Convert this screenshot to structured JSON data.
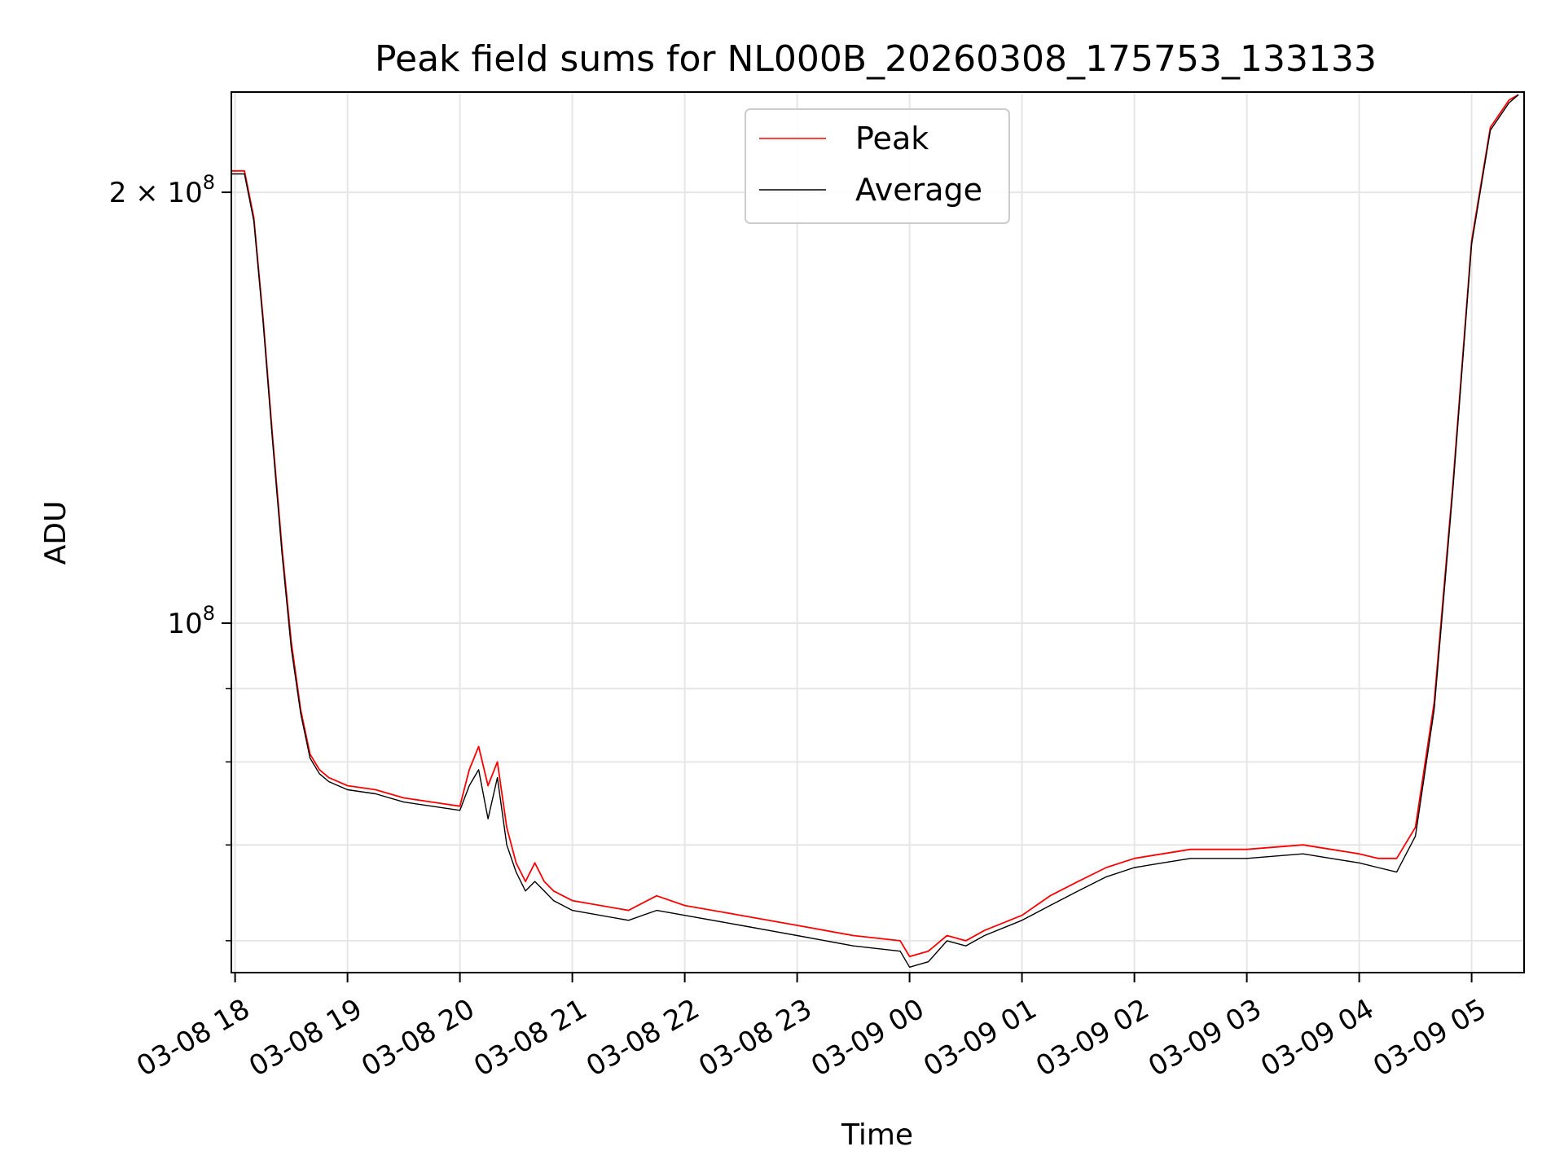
{
  "chart_data": {
    "type": "line",
    "title": "Peak field sums for NL000B_20260308_175753_133133",
    "xlabel": "Time",
    "ylabel": "ADU",
    "y_scale": "log",
    "ylim": [
      57000000,
      235000000
    ],
    "xlim": [
      "2026-03-08 17:58",
      "2026-03-09 05:28"
    ],
    "grid": true,
    "legend_position": "top-center",
    "x_ticks": [
      "03-08 18",
      "03-08 19",
      "03-08 20",
      "03-08 21",
      "03-08 22",
      "03-08 23",
      "03-09 00",
      "03-09 01",
      "03-09 02",
      "03-09 03",
      "03-09 04",
      "03-09 05"
    ],
    "y_major_ticks": [
      {
        "value": 200000000,
        "label": "2 × 10^8"
      },
      {
        "value": 100000000,
        "label": "10^8"
      }
    ],
    "y_minor_ticks": [
      60000000,
      70000000,
      80000000,
      90000000
    ],
    "x": [
      "2026-03-08 17:58",
      "2026-03-08 18:05",
      "2026-03-08 18:10",
      "2026-03-08 18:15",
      "2026-03-08 18:20",
      "2026-03-08 18:25",
      "2026-03-08 18:30",
      "2026-03-08 18:35",
      "2026-03-08 18:40",
      "2026-03-08 18:45",
      "2026-03-08 18:50",
      "2026-03-08 19:00",
      "2026-03-08 19:15",
      "2026-03-08 19:30",
      "2026-03-08 19:45",
      "2026-03-08 20:00",
      "2026-03-08 20:05",
      "2026-03-08 20:10",
      "2026-03-08 20:15",
      "2026-03-08 20:20",
      "2026-03-08 20:25",
      "2026-03-08 20:30",
      "2026-03-08 20:35",
      "2026-03-08 20:40",
      "2026-03-08 20:45",
      "2026-03-08 20:50",
      "2026-03-08 20:55",
      "2026-03-08 21:00",
      "2026-03-08 21:30",
      "2026-03-08 21:45",
      "2026-03-08 22:00",
      "2026-03-08 22:30",
      "2026-03-08 23:00",
      "2026-03-08 23:30",
      "2026-03-08 23:55",
      "2026-03-09 00:00",
      "2026-03-09 00:10",
      "2026-03-09 00:20",
      "2026-03-09 00:30",
      "2026-03-09 00:40",
      "2026-03-09 01:00",
      "2026-03-09 01:15",
      "2026-03-09 01:30",
      "2026-03-09 01:45",
      "2026-03-09 02:00",
      "2026-03-09 02:15",
      "2026-03-09 02:30",
      "2026-03-09 03:00",
      "2026-03-09 03:30",
      "2026-03-09 03:45",
      "2026-03-09 04:00",
      "2026-03-09 04:10",
      "2026-03-09 04:20",
      "2026-03-09 04:30",
      "2026-03-09 04:40",
      "2026-03-09 04:50",
      "2026-03-09 05:00",
      "2026-03-09 05:10",
      "2026-03-09 05:20",
      "2026-03-09 05:25"
    ],
    "series": [
      {
        "name": "Peak",
        "color": "#ff0000",
        "values": [
          207000000,
          207000000,
          192000000,
          163000000,
          135000000,
          113000000,
          97000000,
          87000000,
          81000000,
          79000000,
          78000000,
          77000000,
          76500000,
          75500000,
          75000000,
          74500000,
          79000000,
          82000000,
          77000000,
          80000000,
          72000000,
          68000000,
          66000000,
          68000000,
          66000000,
          65000000,
          64500000,
          64000000,
          63000000,
          64500000,
          63500000,
          62500000,
          61500000,
          60500000,
          60000000,
          58500000,
          59000000,
          60500000,
          60000000,
          61000000,
          62500000,
          64500000,
          66000000,
          67500000,
          68500000,
          69000000,
          69500000,
          69500000,
          70000000,
          69500000,
          69000000,
          68500000,
          68500000,
          72000000,
          88000000,
          125000000,
          185000000,
          222000000,
          232000000,
          234000000
        ]
      },
      {
        "name": "Average",
        "color": "#000000",
        "values": [
          206000000,
          206000000,
          191000000,
          162000000,
          134000000,
          112000000,
          96000000,
          86500000,
          80500000,
          78500000,
          77500000,
          76500000,
          76000000,
          75000000,
          74500000,
          74000000,
          77000000,
          79000000,
          73000000,
          78000000,
          70000000,
          67000000,
          65000000,
          66000000,
          65000000,
          64000000,
          63500000,
          63000000,
          62000000,
          63000000,
          62500000,
          61500000,
          60500000,
          59500000,
          59000000,
          57500000,
          58000000,
          60000000,
          59500000,
          60500000,
          62000000,
          63500000,
          65000000,
          66500000,
          67500000,
          68000000,
          68500000,
          68500000,
          69000000,
          68500000,
          68000000,
          67500000,
          67000000,
          71000000,
          87000000,
          124000000,
          184000000,
          221000000,
          231000000,
          234000000
        ]
      }
    ]
  }
}
